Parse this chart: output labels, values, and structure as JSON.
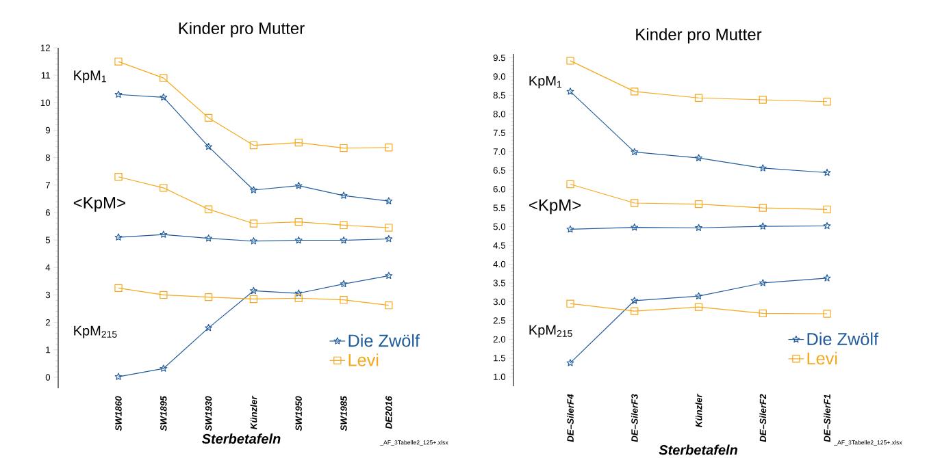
{
  "chart_data": [
    {
      "type": "line",
      "title": "Kinder pro Mutter",
      "xlabel": "Sterbetafeln",
      "categories": [
        "SW1860",
        "SW1895",
        "SW1930",
        "Künzler",
        "SW1950",
        "SW1985",
        "DE2016"
      ],
      "ylim": [
        -0.4,
        12
      ],
      "yticks": [
        0,
        1,
        2,
        3,
        4,
        5,
        6,
        7,
        8,
        9,
        10,
        11,
        12
      ],
      "legend": "bottom right",
      "annotations": [
        "KpM$_{1}$",
        "<KpM>",
        "KpM$_{215}$",
        "_AF_3Tabelle2_125+.xlsx"
      ],
      "series": [
        {
          "name": "Die Zwölf",
          "color": "#205c9c",
          "marker": "star",
          "values": [
            10.3,
            10.2,
            8.4,
            6.82,
            6.98,
            6.62,
            6.42
          ]
        },
        {
          "name": "Levi",
          "color": "#f5a81c",
          "marker": "square",
          "values": [
            11.5,
            10.9,
            9.45,
            8.45,
            8.55,
            8.35,
            8.37
          ]
        },
        {
          "color": "#205c9c",
          "marker": "star",
          "values": [
            5.1,
            5.2,
            5.06,
            4.96,
            4.99,
            4.99,
            5.04
          ]
        },
        {
          "color": "#f5a81c",
          "marker": "square",
          "values": [
            7.3,
            6.9,
            6.12,
            5.6,
            5.66,
            5.54,
            5.45
          ]
        },
        {
          "color": "#205c9c",
          "marker": "star",
          "values": [
            0.02,
            0.32,
            1.8,
            3.15,
            3.06,
            3.4,
            3.7
          ]
        },
        {
          "color": "#f5a81c",
          "marker": "square",
          "values": [
            3.25,
            3.0,
            2.92,
            2.85,
            2.88,
            2.82,
            2.62
          ]
        }
      ]
    },
    {
      "type": "line",
      "title": "Kinder pro Mutter",
      "xlabel": "Sterbetafeln",
      "categories": [
        "DE–SilerF4",
        "DE–SilerF3",
        "Künzler",
        "DE–SilerF2",
        "DE–SilerF1"
      ],
      "ylim": [
        0.75,
        9.6
      ],
      "yticks": [
        {
          "value": 1,
          "label": "1.0"
        },
        {
          "value": 1.5,
          "label": "1.5"
        },
        {
          "value": 2,
          "label": "2.0"
        },
        {
          "value": 2.5,
          "label": "2.5"
        },
        {
          "value": 3,
          "label": "3.0"
        },
        {
          "value": 3.5,
          "label": "3.5"
        },
        {
          "value": 4,
          "label": "4.0"
        },
        {
          "value": 4.5,
          "label": "4.5"
        },
        {
          "value": 5,
          "label": "5.0"
        },
        {
          "value": 5.5,
          "label": "5.5"
        },
        {
          "value": 6,
          "label": "6.0"
        },
        {
          "value": 6.5,
          "label": "6.5"
        },
        {
          "value": 7,
          "label": "7.0"
        },
        {
          "value": 7.5,
          "label": "7.5"
        },
        {
          "value": 8,
          "label": "8.0"
        },
        {
          "value": 8.5,
          "label": "8.5"
        },
        {
          "value": 9,
          "label": "9.0"
        },
        {
          "value": 9.5,
          "label": "9.5"
        }
      ],
      "legend": "bottom right",
      "annotations": [
        "KpM$_{1}$",
        "<KpM>",
        "KpM$_{215}$",
        "_AF_3Tabelle2_125+.xlsx"
      ],
      "series": [
        {
          "name": "Die Zwölf",
          "color": "#205c9c",
          "marker": "star",
          "values": [
            8.6,
            6.99,
            6.83,
            6.56,
            6.44
          ]
        },
        {
          "name": "Levi",
          "color": "#f5a81c",
          "marker": "square",
          "values": [
            9.42,
            8.6,
            8.43,
            8.38,
            8.33
          ]
        },
        {
          "color": "#205c9c",
          "marker": "star",
          "values": [
            4.93,
            4.98,
            4.97,
            5.01,
            5.02
          ]
        },
        {
          "color": "#f5a81c",
          "marker": "square",
          "values": [
            6.13,
            5.63,
            5.6,
            5.5,
            5.46
          ]
        },
        {
          "color": "#205c9c",
          "marker": "star",
          "values": [
            1.37,
            3.03,
            3.15,
            3.5,
            3.63
          ]
        },
        {
          "color": "#f5a81c",
          "marker": "square",
          "values": [
            2.95,
            2.75,
            2.86,
            2.69,
            2.68
          ]
        }
      ]
    }
  ]
}
